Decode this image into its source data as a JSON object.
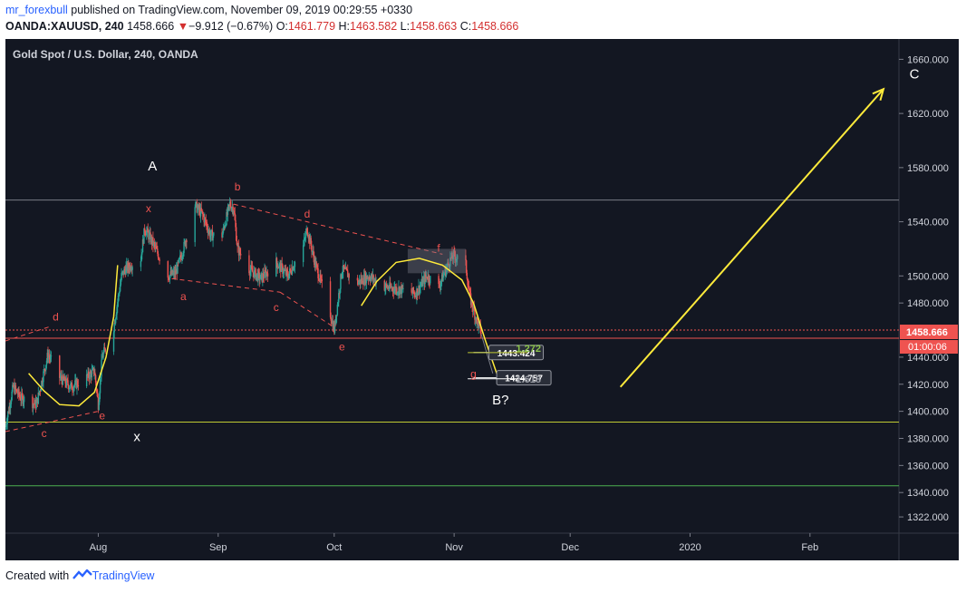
{
  "header": {
    "user": "mr_forexbull",
    "published_text": "published on TradingView.com, November 09, 2019 00:29:55 +0330",
    "symbol": "OANDA:XAUUSD, 240",
    "last": "1458.666",
    "change_arrow": "▼",
    "change": "−9.912 (−0.67%)",
    "o_label": "O:",
    "o": "1461.779",
    "h_label": "H:",
    "h": "1463.582",
    "l_label": "L:",
    "l": "1458.663",
    "c_label": "C:",
    "c": "1458.666"
  },
  "footer": {
    "created_with": "Created with",
    "brand": "TradingView",
    "logo_icon": "tradingview-logo-icon"
  },
  "colors": {
    "background": "#131722",
    "axis_text": "#d1d4dc",
    "candle_up": "#26a69a",
    "candle_down": "#ef5350",
    "annotation_red": "#ef5350",
    "yellow": "#ffeb3b",
    "price_label_bg": "#ef5350"
  },
  "chart_data": {
    "type": "candlestick",
    "title": "Gold Spot / U.S. Dollar, 240, OANDA",
    "ylim": [
      1310,
      1675
    ],
    "y_ticks": [
      1660,
      1620,
      1580,
      1540,
      1500,
      1480,
      1440,
      1420,
      1400,
      1380,
      1360,
      1340,
      1322
    ],
    "y_tick_labels": [
      "1660.000",
      "1620.000",
      "1580.000",
      "1540.000",
      "1500.000",
      "1480.000",
      "1440.000",
      "1420.000",
      "1400.000",
      "1380.000",
      "1360.000",
      "1340.000",
      "1322.000"
    ],
    "x_range": [
      "2019-07-08",
      "2020-02-24"
    ],
    "x_ticks": [
      {
        "date": "2019-08-01",
        "label": "Aug"
      },
      {
        "date": "2019-09-01",
        "label": "Sep"
      },
      {
        "date": "2019-10-01",
        "label": "Oct"
      },
      {
        "date": "2019-11-01",
        "label": "Nov"
      },
      {
        "date": "2019-12-01",
        "label": "Dec"
      },
      {
        "date": "2020-01-01",
        "label": "2020"
      },
      {
        "date": "2020-02-01",
        "label": "Feb"
      }
    ],
    "price_path": [
      [
        "2019-07-08",
        1389
      ],
      [
        "2019-07-10",
        1418
      ],
      [
        "2019-07-12",
        1410
      ],
      [
        "2019-07-16",
        1405
      ],
      [
        "2019-07-19",
        1442
      ],
      [
        "2019-07-22",
        1425
      ],
      [
        "2019-07-25",
        1418
      ],
      [
        "2019-07-29",
        1425
      ],
      [
        "2019-07-31",
        1430
      ],
      [
        "2019-08-01",
        1405
      ],
      [
        "2019-08-02",
        1440
      ],
      [
        "2019-08-05",
        1462
      ],
      [
        "2019-08-07",
        1500
      ],
      [
        "2019-08-08",
        1505
      ],
      [
        "2019-08-12",
        1513
      ],
      [
        "2019-08-13",
        1535
      ],
      [
        "2019-08-15",
        1525
      ],
      [
        "2019-08-19",
        1500
      ],
      [
        "2019-08-21",
        1502
      ],
      [
        "2019-08-23",
        1520
      ],
      [
        "2019-08-26",
        1552
      ],
      [
        "2019-08-28",
        1545
      ],
      [
        "2019-08-30",
        1530
      ],
      [
        "2019-09-02",
        1530
      ],
      [
        "2019-09-04",
        1553
      ],
      [
        "2019-09-05",
        1550
      ],
      [
        "2019-09-06",
        1520
      ],
      [
        "2019-09-09",
        1505
      ],
      [
        "2019-09-12",
        1498
      ],
      [
        "2019-09-16",
        1510
      ],
      [
        "2019-09-19",
        1500
      ],
      [
        "2019-09-23",
        1522
      ],
      [
        "2019-09-24",
        1535
      ],
      [
        "2019-09-26",
        1510
      ],
      [
        "2019-09-30",
        1472
      ],
      [
        "2019-10-01",
        1460
      ],
      [
        "2019-10-03",
        1505
      ],
      [
        "2019-10-07",
        1495
      ],
      [
        "2019-10-10",
        1500
      ],
      [
        "2019-10-14",
        1492
      ],
      [
        "2019-10-18",
        1490
      ],
      [
        "2019-10-22",
        1487
      ],
      [
        "2019-10-25",
        1500
      ],
      [
        "2019-10-28",
        1492
      ],
      [
        "2019-10-31",
        1512
      ],
      [
        "2019-11-01",
        1515
      ],
      [
        "2019-11-04",
        1508
      ],
      [
        "2019-11-05",
        1485
      ],
      [
        "2019-11-07",
        1465
      ],
      [
        "2019-11-08",
        1458.666
      ]
    ],
    "last_price": 1458.666,
    "last_price_label": "1458.666",
    "countdown_label": "01:00:06",
    "horizontal_lines": [
      {
        "price": 1556,
        "color": "#787b86"
      },
      {
        "price": 1460,
        "color": "#ef5350",
        "dotted": true
      },
      {
        "price": 1454,
        "color": "#ef5350"
      },
      {
        "price": 1392,
        "color": "#c0ca33"
      },
      {
        "price": 1345,
        "color": "#4caf50"
      }
    ],
    "fib_levels": [
      {
        "price": 1443.424,
        "label": "1443.424"
      },
      {
        "price": 1424.757,
        "label": "1424.757"
      }
    ],
    "fib_ratios": [
      {
        "price": 1443.4,
        "label": "1.272"
      },
      {
        "price": 1424.0,
        "label": "1.618"
      }
    ],
    "wave_labels": [
      {
        "text": "A",
        "date": "2019-08-15",
        "price": 1578,
        "color": "white"
      },
      {
        "text": "x",
        "date": "2019-08-14",
        "price": 1547,
        "color": "red"
      },
      {
        "text": "b",
        "date": "2019-09-06",
        "price": 1563,
        "color": "red"
      },
      {
        "text": "d",
        "date": "2019-09-24",
        "price": 1543,
        "color": "red"
      },
      {
        "text": "a",
        "date": "2019-08-23",
        "price": 1482,
        "color": "red"
      },
      {
        "text": "c",
        "date": "2019-09-16",
        "price": 1474,
        "color": "red"
      },
      {
        "text": "e",
        "date": "2019-10-03",
        "price": 1445,
        "color": "red"
      },
      {
        "text": "f",
        "date": "2019-10-28",
        "price": 1518,
        "color": "red"
      },
      {
        "text": "g",
        "date": "2019-11-06",
        "price": 1425,
        "color": "red"
      },
      {
        "text": "d",
        "date": "2019-07-21",
        "price": 1467,
        "color": "red"
      },
      {
        "text": "c",
        "date": "2019-07-18",
        "price": 1381,
        "color": "red"
      },
      {
        "text": "e",
        "date": "2019-08-02",
        "price": 1394,
        "color": "red"
      },
      {
        "text": "x",
        "date": "2019-08-11",
        "price": 1378,
        "color": "white"
      },
      {
        "text": "B?",
        "date": "2019-11-13",
        "price": 1405,
        "color": "white"
      },
      {
        "text": "C",
        "date": "2020-02-28",
        "price": 1646,
        "color": "white"
      }
    ]
  }
}
